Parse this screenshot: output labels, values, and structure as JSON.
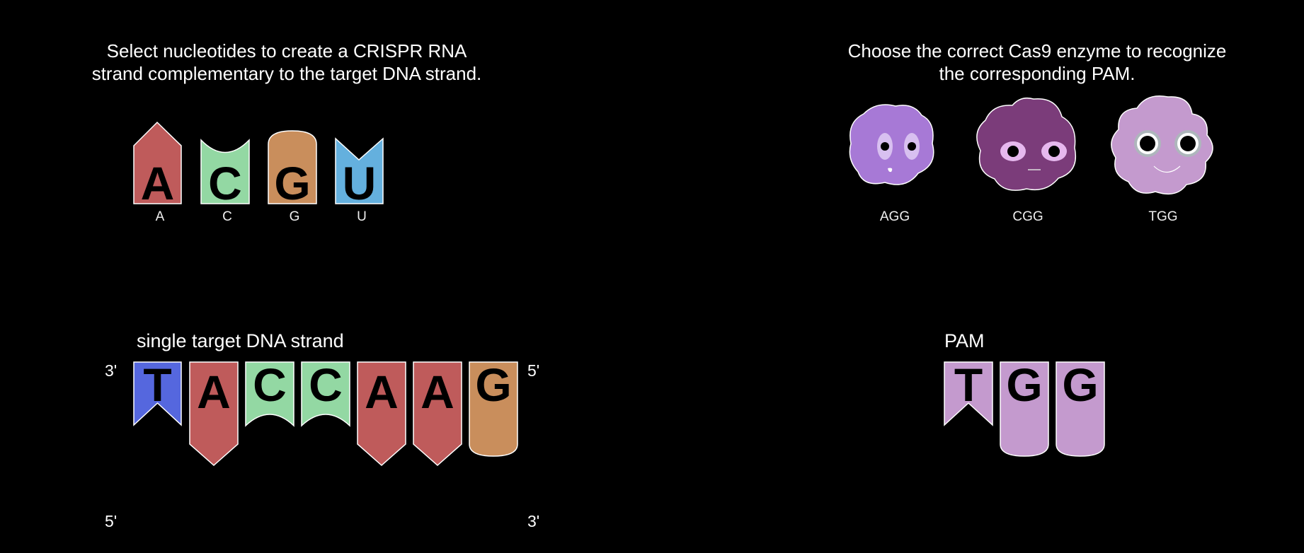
{
  "instructions": {
    "rna": [
      "Select nucleotides to create a CRISPR RNA",
      "strand complementary to the target DNA strand."
    ],
    "cas9": [
      "Choose the correct Cas9 enzyme to recognize",
      "the corresponding PAM."
    ]
  },
  "palette": [
    {
      "letter": "A",
      "label": "A",
      "color": "#bf5b5b"
    },
    {
      "letter": "C",
      "label": "C",
      "color": "#93d8a3"
    },
    {
      "letter": "G",
      "label": "G",
      "color": "#c98e5c"
    },
    {
      "letter": "U",
      "label": "U",
      "color": "#64b0de"
    }
  ],
  "enzymes": [
    {
      "label": "AGG",
      "color": "#a779d6",
      "eye_color": "#d8c0f0"
    },
    {
      "label": "CGG",
      "color": "#7b3c7a",
      "eye_color": "#e6b8ee"
    },
    {
      "label": "TGG",
      "color": "#c49ace",
      "eye_color": "#aeb6bc"
    }
  ],
  "dna": {
    "heading": "single target DNA strand",
    "left_top": "3'",
    "right_top": "5'",
    "left_bottom": "5'",
    "right_bottom": "3'",
    "bases": [
      {
        "letter": "T",
        "color": "#5567de"
      },
      {
        "letter": "A",
        "color": "#bf5b5b"
      },
      {
        "letter": "C",
        "color": "#93d8a3"
      },
      {
        "letter": "C",
        "color": "#93d8a3"
      },
      {
        "letter": "A",
        "color": "#bf5b5b"
      },
      {
        "letter": "A",
        "color": "#bf5b5b"
      },
      {
        "letter": "G",
        "color": "#c98e5c"
      }
    ]
  },
  "pam": {
    "heading": "PAM",
    "color": "#c49ace",
    "bases": [
      "T",
      "G",
      "G"
    ]
  }
}
